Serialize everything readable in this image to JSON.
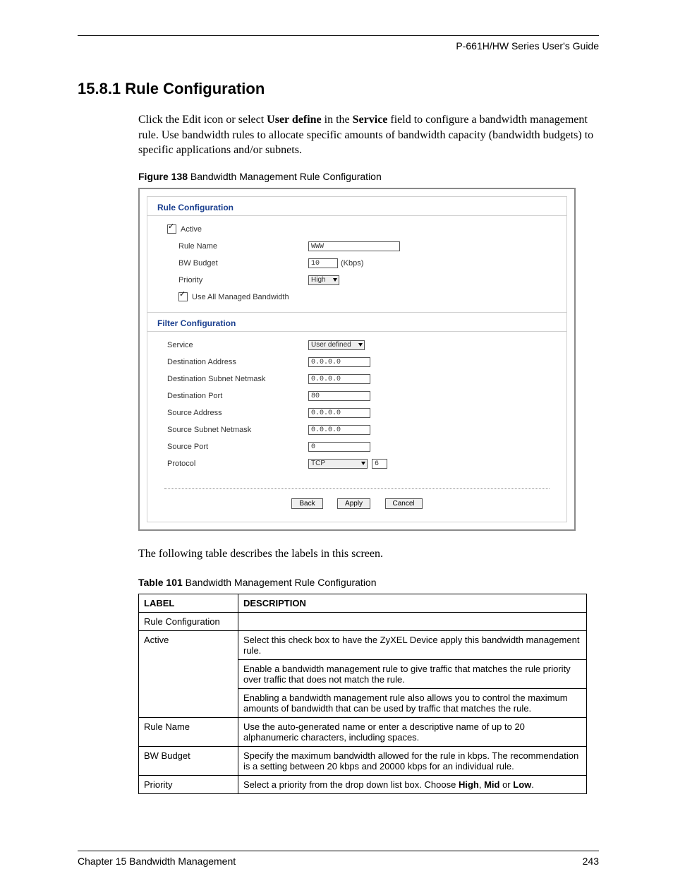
{
  "header": {
    "guide_title": "P-661H/HW Series User's Guide"
  },
  "section": {
    "number_title": "15.8.1  Rule Configuration",
    "intro_1": "Click the Edit icon or select ",
    "intro_bold1": "User define",
    "intro_2": " in the ",
    "intro_bold2": "Service",
    "intro_3": " field to configure a bandwidth management rule. Use bandwidth rules to allocate specific amounts of bandwidth capacity (bandwidth budgets) to specific applications and/or subnets."
  },
  "figure": {
    "label": "Figure 138",
    "title": "   Bandwidth Management Rule Configuration"
  },
  "screenshot": {
    "rule_config_title": "Rule Configuration",
    "active_label": "Active",
    "rule_name_label": "Rule Name",
    "rule_name_value": "WWW",
    "bw_budget_label": "BW Budget",
    "bw_budget_value": "10",
    "bw_budget_unit": "(Kbps)",
    "priority_label": "Priority",
    "priority_value": "High",
    "use_all_label": "Use All Managed Bandwidth",
    "filter_config_title": "Filter Configuration",
    "service_label": "Service",
    "service_value": "User defined",
    "dest_addr_label": "Destination Address",
    "dest_addr_value": "0.0.0.0",
    "dest_mask_label": "Destination Subnet Netmask",
    "dest_mask_value": "0.0.0.0",
    "dest_port_label": "Destination Port",
    "dest_port_value": "80",
    "src_addr_label": "Source Address",
    "src_addr_value": "0.0.0.0",
    "src_mask_label": "Source Subnet Netmask",
    "src_mask_value": "0.0.0.0",
    "src_port_label": "Source Port",
    "src_port_value": "0",
    "protocol_label": "Protocol",
    "protocol_value": "TCP",
    "protocol_num": "6",
    "btn_back": "Back",
    "btn_apply": "Apply",
    "btn_cancel": "Cancel"
  },
  "after_figure": "The following table describes the labels in this screen.",
  "table": {
    "label": "Table 101",
    "title": "   Bandwidth Management Rule Configuration",
    "header_label": "LABEL",
    "header_desc": "DESCRIPTION",
    "rows": [
      {
        "label": "Rule Configuration",
        "desc": [
          ""
        ]
      },
      {
        "label": "Active",
        "desc": [
          "Select this check box to have the ZyXEL Device apply this bandwidth management rule.",
          "Enable a bandwidth management rule to give traffic that matches the rule priority over traffic that does not match the rule.",
          "Enabling a bandwidth management rule also allows you to control the maximum amounts of bandwidth that can be used by traffic that matches the rule."
        ]
      },
      {
        "label": "Rule Name",
        "desc": [
          "Use the auto-generated name or enter a descriptive name of up to 20 alphanumeric characters, including spaces."
        ]
      },
      {
        "label": "BW Budget",
        "desc": [
          "Specify the maximum bandwidth allowed for the rule in kbps. The recommendation is a setting between 20 kbps and 20000 kbps for an individual rule."
        ]
      },
      {
        "label": "Priority",
        "desc_html": "Select a priority from the drop down list box. Choose <b>High</b>, <b>Mid</b> or <b>Low</b>."
      }
    ]
  },
  "footer": {
    "chapter": "Chapter 15 Bandwidth Management",
    "page": "243"
  }
}
